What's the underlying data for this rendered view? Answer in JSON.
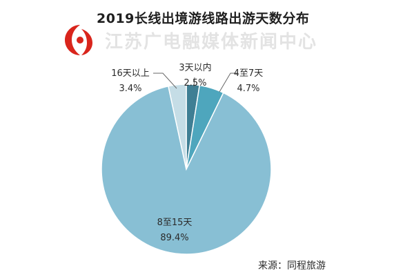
{
  "title": "2019长线出境游线路出游天数分布",
  "watermark": {
    "text": "江苏广电融媒体新闻中心"
  },
  "source": "来源：同程旅游",
  "colors": {
    "background": "#ffffff",
    "leader_line": "#666666"
  },
  "chart_data": {
    "type": "pie",
    "unit": "%",
    "slices": [
      {
        "label": "3天以内",
        "value": 2.5,
        "display": "2.5%",
        "color": "#3f7f94"
      },
      {
        "label": "4至7天",
        "value": 4.7,
        "display": "4.7%",
        "color": "#4ea6bd"
      },
      {
        "label": "8至15天",
        "value": 89.4,
        "display": "89.4%",
        "color": "#88bfd4"
      },
      {
        "label": "16天以上",
        "value": 3.4,
        "display": "3.4%",
        "color": "#c5dde6"
      }
    ]
  }
}
